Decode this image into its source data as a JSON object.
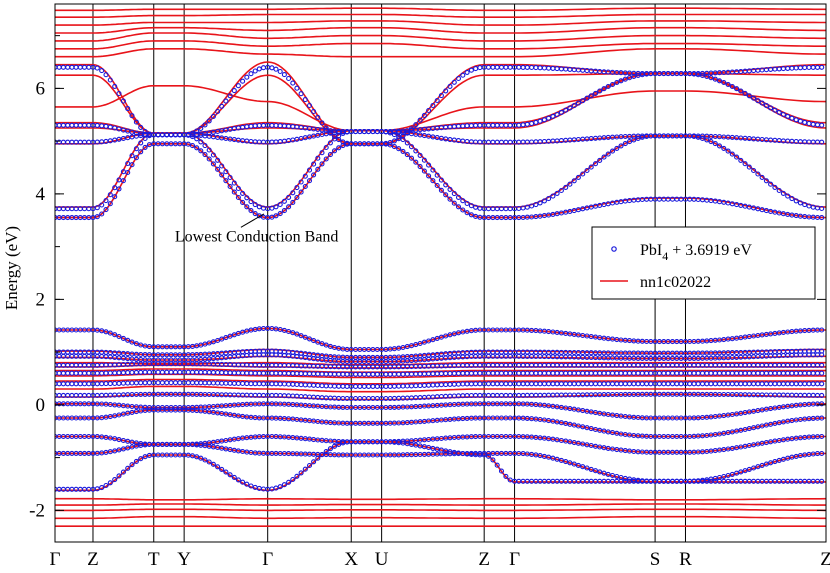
{
  "chart_data": {
    "type": "line",
    "title": "",
    "xlabel": "",
    "ylabel": "Energy (eV)",
    "ylim": [
      -2.6,
      7.6
    ],
    "yticks": [
      -2,
      0,
      2,
      4,
      6
    ],
    "kpoints": [
      {
        "label": "Γ",
        "x": 0
      },
      {
        "label": "Z",
        "x": 1
      },
      {
        "label": "T",
        "x": 2.6
      },
      {
        "label": "Y",
        "x": 3.4
      },
      {
        "label": "Γ",
        "x": 5.6
      },
      {
        "label": "X",
        "x": 7.8
      },
      {
        "label": "U",
        "x": 8.6
      },
      {
        "label": "Z",
        "x": 11.3
      },
      {
        "label": "Γ",
        "x": 12.1
      },
      {
        "label": "S",
        "x": 15.8
      },
      {
        "label": "R",
        "x": 16.6
      },
      {
        "label": "Z",
        "x": 20.3
      }
    ],
    "annotation": {
      "text": "Lowest Conduction Band",
      "x": 5.0,
      "y": 3.1,
      "target_x": 5.5,
      "target_y": 3.62
    },
    "legend": {
      "position": "right",
      "entries": [
        {
          "label": "PbI",
          "sub": "4",
          "suffix": " + 3.6919 eV",
          "marker": "circle",
          "color": "#1a1adc"
        },
        {
          "label": "nn1c02022",
          "sub": "",
          "suffix": "",
          "marker": "line",
          "color": "#e8141a"
        }
      ]
    },
    "series": [
      {
        "marker": "line",
        "color": "#e8141a",
        "bands": [
          [
            -1.62,
            -1.62,
            -0.95,
            -0.95,
            -1.62,
            -0.7,
            -0.7,
            -0.95,
            -1.46,
            -1.46,
            -1.46,
            -1.46
          ],
          [
            -0.92,
            -0.92,
            -0.75,
            -0.75,
            -0.92,
            -0.95,
            -0.95,
            -0.92,
            -0.92,
            -1.46,
            -1.46,
            -0.92
          ],
          [
            -0.6,
            -0.6,
            -0.75,
            -0.75,
            -0.6,
            -0.7,
            -0.7,
            -0.6,
            -0.6,
            -0.9,
            -0.9,
            -0.6
          ],
          [
            -0.25,
            -0.25,
            -0.1,
            -0.1,
            -0.25,
            -0.35,
            -0.35,
            -0.25,
            -0.25,
            -0.6,
            -0.6,
            -0.25
          ],
          [
            0.02,
            0.02,
            -0.05,
            -0.05,
            0.02,
            -0.05,
            -0.05,
            0.02,
            0.02,
            -0.25,
            -0.25,
            0.02
          ],
          [
            0.15,
            0.15,
            0.2,
            0.2,
            0.15,
            0.1,
            0.1,
            0.15,
            0.15,
            0.2,
            0.2,
            0.15
          ],
          [
            0.3,
            0.3,
            0.35,
            0.35,
            0.3,
            0.25,
            0.25,
            0.3,
            0.3,
            0.3,
            0.3,
            0.3
          ],
          [
            0.45,
            0.45,
            0.48,
            0.48,
            0.45,
            0.4,
            0.4,
            0.45,
            0.45,
            0.45,
            0.45,
            0.45
          ],
          [
            0.55,
            0.55,
            0.58,
            0.58,
            0.55,
            0.52,
            0.52,
            0.55,
            0.55,
            0.55,
            0.55,
            0.55
          ],
          [
            0.65,
            0.65,
            0.68,
            0.68,
            0.65,
            0.62,
            0.62,
            0.65,
            0.65,
            0.65,
            0.65,
            0.65
          ],
          [
            0.72,
            0.72,
            0.75,
            0.75,
            0.72,
            0.7,
            0.7,
            0.72,
            0.72,
            0.72,
            0.72,
            0.72
          ],
          [
            0.8,
            0.8,
            0.78,
            0.78,
            0.8,
            0.76,
            0.76,
            0.8,
            0.8,
            0.8,
            0.8,
            0.8
          ],
          [
            0.9,
            0.9,
            0.85,
            0.85,
            0.92,
            0.82,
            0.82,
            0.9,
            0.9,
            0.88,
            0.88,
            0.92
          ],
          [
            1.02,
            1.02,
            0.95,
            0.95,
            1.05,
            0.9,
            0.9,
            1.02,
            1.02,
            0.98,
            0.98,
            1.05
          ],
          [
            1.42,
            1.42,
            1.1,
            1.1,
            1.45,
            1.05,
            1.05,
            1.42,
            1.42,
            1.2,
            1.2,
            1.42
          ],
          [
            -2.3,
            -2.3,
            -2.3,
            -2.3,
            -2.3,
            -2.3,
            -2.3,
            -2.3,
            -2.3,
            -2.3,
            -2.3,
            -2.3
          ],
          [
            -2.15,
            -2.15,
            -2.12,
            -2.12,
            -2.15,
            -2.14,
            -2.14,
            -2.15,
            -2.15,
            -2.12,
            -2.12,
            -2.15
          ],
          [
            -2.0,
            -2.0,
            -1.98,
            -1.98,
            -2.0,
            -1.99,
            -1.99,
            -2.0,
            -2.0,
            -1.98,
            -1.98,
            -2.0
          ],
          [
            -1.9,
            -1.9,
            -1.88,
            -1.88,
            -1.9,
            -1.89,
            -1.89,
            -1.9,
            -1.9,
            -1.88,
            -1.88,
            -1.9
          ],
          [
            -1.78,
            -1.78,
            -1.8,
            -1.8,
            -1.78,
            -1.79,
            -1.79,
            -1.78,
            -1.78,
            -1.8,
            -1.8,
            -1.78
          ],
          [
            3.55,
            3.55,
            4.95,
            4.95,
            3.55,
            4.95,
            4.95,
            3.55,
            3.55,
            3.92,
            3.92,
            3.55
          ],
          [
            3.75,
            3.75,
            5.15,
            5.15,
            3.75,
            5.2,
            5.2,
            3.75,
            3.75,
            5.1,
            5.1,
            3.75
          ],
          [
            4.95,
            4.95,
            5.15,
            5.15,
            4.95,
            5.2,
            5.2,
            4.95,
            4.95,
            5.1,
            5.1,
            4.95
          ],
          [
            5.25,
            5.25,
            5.15,
            5.15,
            5.25,
            5.2,
            5.2,
            5.25,
            5.25,
            6.28,
            6.28,
            5.25
          ],
          [
            5.35,
            5.35,
            5.15,
            5.15,
            5.35,
            5.2,
            5.2,
            5.35,
            5.35,
            6.28,
            6.28,
            5.35
          ],
          [
            5.65,
            5.65,
            6.05,
            6.05,
            5.75,
            5.2,
            5.2,
            5.65,
            5.65,
            5.95,
            5.95,
            5.75
          ],
          [
            6.25,
            6.25,
            5.15,
            5.15,
            6.25,
            4.95,
            4.95,
            6.25,
            6.25,
            6.28,
            6.28,
            6.25
          ],
          [
            6.45,
            6.45,
            5.15,
            5.15,
            6.5,
            4.95,
            4.95,
            6.45,
            6.45,
            6.28,
            6.28,
            6.45
          ],
          [
            6.6,
            6.6,
            6.75,
            6.75,
            6.65,
            6.6,
            6.6,
            6.6,
            6.6,
            6.75,
            6.75,
            6.65
          ],
          [
            6.75,
            6.75,
            6.9,
            6.9,
            6.8,
            6.85,
            6.85,
            6.75,
            6.75,
            6.85,
            6.85,
            6.8
          ],
          [
            6.9,
            6.9,
            7.05,
            7.05,
            6.95,
            7.0,
            7.0,
            6.9,
            6.9,
            7.0,
            7.0,
            6.95
          ],
          [
            7.05,
            7.05,
            7.15,
            7.15,
            7.1,
            7.15,
            7.15,
            7.05,
            7.05,
            7.15,
            7.15,
            7.1
          ],
          [
            7.2,
            7.2,
            7.25,
            7.25,
            7.25,
            7.28,
            7.28,
            7.2,
            7.2,
            7.28,
            7.28,
            7.25
          ],
          [
            7.35,
            7.35,
            7.38,
            7.38,
            7.4,
            7.4,
            7.4,
            7.35,
            7.35,
            7.4,
            7.4,
            7.4
          ],
          [
            7.48,
            7.48,
            7.5,
            7.5,
            7.5,
            7.52,
            7.52,
            7.48,
            7.48,
            7.52,
            7.52,
            7.5
          ]
        ]
      },
      {
        "marker": "circle",
        "color": "#1a1adc",
        "bands": [
          [
            -1.6,
            -1.6,
            -0.95,
            -0.95,
            -1.6,
            -0.7,
            -0.7,
            -0.95,
            -1.45,
            -1.45,
            -1.45,
            -1.45
          ],
          [
            -0.92,
            -0.92,
            -0.75,
            -0.75,
            -0.92,
            -0.95,
            -0.95,
            -0.92,
            -0.92,
            -1.45,
            -1.45,
            -0.92
          ],
          [
            -0.6,
            -0.6,
            -0.75,
            -0.75,
            -0.6,
            -0.7,
            -0.7,
            -0.6,
            -0.6,
            -0.9,
            -0.9,
            -0.6
          ],
          [
            -0.25,
            -0.25,
            -0.1,
            -0.1,
            -0.25,
            -0.35,
            -0.35,
            -0.25,
            -0.25,
            -0.6,
            -0.6,
            -0.25
          ],
          [
            0.02,
            0.02,
            -0.05,
            -0.05,
            0.02,
            -0.05,
            -0.05,
            0.02,
            0.02,
            -0.25,
            -0.25,
            0.02
          ],
          [
            0.18,
            0.18,
            0.2,
            0.2,
            0.18,
            0.12,
            0.12,
            0.18,
            0.18,
            0.2,
            0.2,
            0.18
          ],
          [
            0.4,
            0.4,
            0.42,
            0.42,
            0.4,
            0.35,
            0.35,
            0.4,
            0.4,
            0.4,
            0.4,
            0.4
          ],
          [
            0.6,
            0.6,
            0.62,
            0.62,
            0.6,
            0.58,
            0.58,
            0.6,
            0.6,
            0.6,
            0.6,
            0.6
          ],
          [
            0.75,
            0.75,
            0.78,
            0.78,
            0.75,
            0.72,
            0.72,
            0.75,
            0.75,
            0.75,
            0.75,
            0.75
          ],
          [
            0.92,
            0.92,
            0.85,
            0.85,
            0.95,
            0.82,
            0.82,
            0.92,
            0.92,
            0.88,
            0.88,
            0.95
          ],
          [
            1.0,
            1.0,
            0.95,
            0.95,
            1.02,
            0.9,
            0.9,
            1.0,
            1.0,
            0.98,
            0.98,
            1.02
          ],
          [
            1.42,
            1.42,
            1.1,
            1.1,
            1.45,
            1.05,
            1.05,
            1.42,
            1.42,
            1.2,
            1.2,
            1.42
          ],
          [
            3.55,
            3.55,
            4.95,
            4.95,
            3.55,
            4.95,
            4.95,
            3.55,
            3.55,
            3.9,
            3.9,
            3.55
          ],
          [
            3.72,
            3.72,
            5.12,
            5.12,
            3.72,
            5.18,
            5.18,
            3.72,
            3.72,
            5.1,
            5.1,
            3.72
          ],
          [
            4.98,
            4.98,
            5.12,
            5.12,
            4.98,
            5.18,
            5.18,
            4.98,
            4.98,
            5.1,
            5.1,
            4.98
          ],
          [
            5.3,
            5.3,
            5.12,
            5.12,
            5.3,
            5.18,
            5.18,
            5.3,
            5.3,
            6.28,
            6.28,
            5.3
          ],
          [
            6.4,
            6.4,
            5.12,
            5.12,
            6.4,
            4.95,
            4.95,
            6.4,
            6.4,
            6.28,
            6.28,
            6.4
          ]
        ]
      }
    ]
  }
}
